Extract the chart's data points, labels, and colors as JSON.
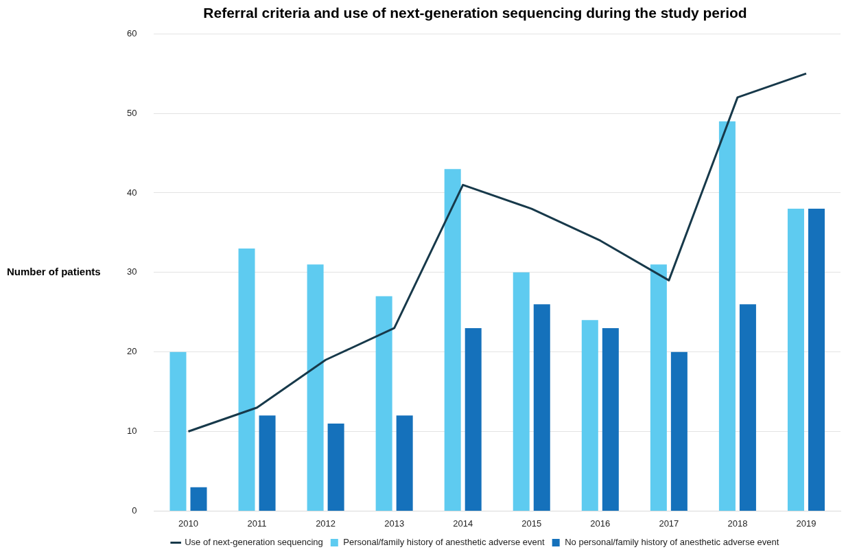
{
  "chart_data": {
    "type": "bar",
    "title": "Referral criteria and use of next-generation sequencing during the study period",
    "ylabel": "Number of patients",
    "categories": [
      "2010",
      "2011",
      "2012",
      "2013",
      "2014",
      "2015",
      "2016",
      "2017",
      "2018",
      "2019"
    ],
    "series": [
      {
        "name": "Personal/family history of anesthetic adverse event",
        "color": "#5ecbf0",
        "values": [
          20,
          33,
          31,
          27,
          43,
          30,
          24,
          31,
          49,
          38
        ]
      },
      {
        "name": "No personal/family history of anesthetic adverse event",
        "color": "#1571bb",
        "values": [
          3,
          12,
          11,
          12,
          23,
          26,
          23,
          20,
          26,
          38
        ]
      },
      {
        "name": "Use of next-generation sequencing",
        "type": "line",
        "color": "#17394a",
        "values": [
          10,
          13,
          19,
          23,
          41,
          38,
          34,
          29,
          52,
          55
        ]
      }
    ],
    "ylim": [
      0,
      60
    ],
    "yticks": [
      0,
      10,
      20,
      30,
      40,
      50,
      60
    ],
    "grid": "y",
    "legend": "bottom",
    "marker": "none",
    "line_style": "solid"
  }
}
